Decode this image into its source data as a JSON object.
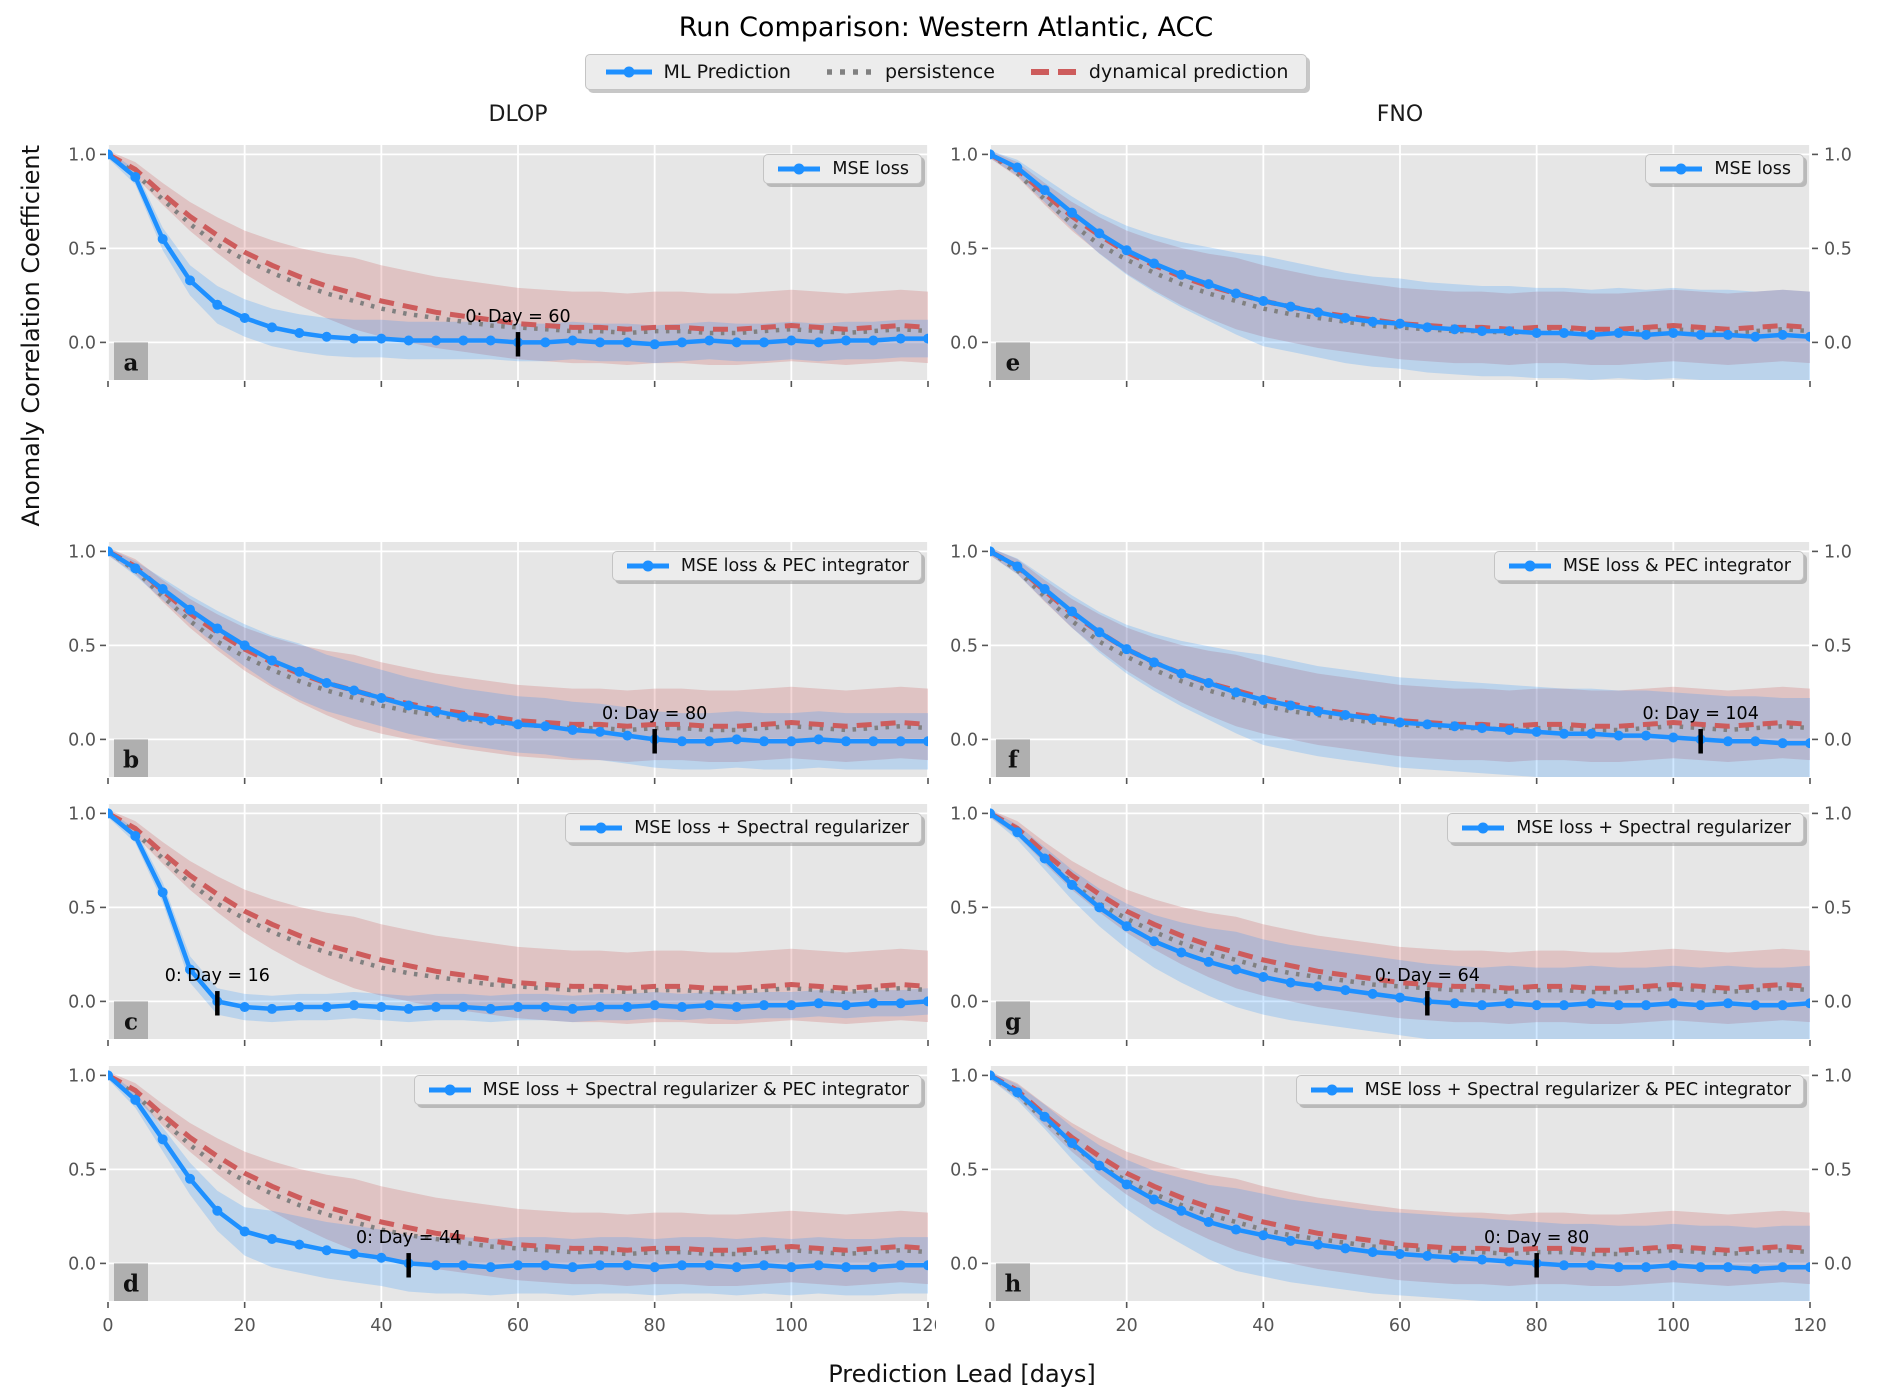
{
  "title": "Run Comparison: Western Atlantic, ACC",
  "xlabel": "Prediction Lead [days]",
  "ylabel": "Anomaly Correlation Coefficient",
  "column_titles": [
    "DLOP",
    "FNO"
  ],
  "figure_legend": [
    {
      "label": "ML Prediction",
      "series": "ml"
    },
    {
      "label": "persistence",
      "series": "persistence"
    },
    {
      "label": "dynamical prediction",
      "series": "dynamical"
    }
  ],
  "colors": {
    "ml": "#1E90FF",
    "persistence": "#808080",
    "dynamical": "#CD5C5C",
    "ml_band": "rgba(30,144,255,0.21)",
    "dynamical_band": "rgba(205,92,92,0.25)",
    "plot_bg": "#E6E6E6",
    "grid": "#FFFFFF",
    "tick_label": "#555555",
    "annotation": "#000000",
    "panel_label_bg": "#AFAFAF",
    "panel_label_text": "#111111"
  },
  "axes": {
    "xlim": [
      0,
      120
    ],
    "ylim": [
      -0.2,
      1.05
    ],
    "x_ticks": [
      0,
      20,
      40,
      60,
      80,
      100,
      120
    ],
    "x_tick_labels": [
      "0",
      "20",
      "40",
      "60",
      "80",
      "100",
      "120"
    ],
    "y_ticks": [
      1.0,
      0.5,
      0.0
    ],
    "y_tick_labels": [
      "1.0",
      "0.5",
      "0.0"
    ]
  },
  "chart_data": {
    "type": "line",
    "x": [
      0,
      4,
      8,
      12,
      16,
      20,
      24,
      28,
      32,
      36,
      40,
      44,
      48,
      52,
      56,
      60,
      64,
      68,
      72,
      76,
      80,
      84,
      88,
      92,
      96,
      100,
      104,
      108,
      112,
      116,
      120
    ],
    "reference_series": {
      "persistence": [
        1.0,
        0.9,
        0.76,
        0.63,
        0.52,
        0.44,
        0.37,
        0.31,
        0.26,
        0.22,
        0.18,
        0.15,
        0.13,
        0.11,
        0.09,
        0.08,
        0.07,
        0.06,
        0.06,
        0.05,
        0.06,
        0.06,
        0.05,
        0.05,
        0.06,
        0.07,
        0.06,
        0.05,
        0.06,
        0.07,
        0.06
      ],
      "dynamical": [
        1.0,
        0.92,
        0.79,
        0.67,
        0.57,
        0.48,
        0.41,
        0.35,
        0.3,
        0.26,
        0.22,
        0.19,
        0.16,
        0.14,
        0.12,
        0.1,
        0.09,
        0.08,
        0.08,
        0.07,
        0.08,
        0.08,
        0.07,
        0.07,
        0.08,
        0.09,
        0.08,
        0.07,
        0.08,
        0.09,
        0.08
      ],
      "dynamical_band_halfwidth": {
        "start": 0.02,
        "max": 0.19,
        "ramp_days": 36
      }
    },
    "panels": [
      {
        "id": "a",
        "column": "DLOP",
        "legend": "MSE loss",
        "ml": [
          1.0,
          0.88,
          0.55,
          0.33,
          0.2,
          0.13,
          0.08,
          0.05,
          0.03,
          0.02,
          0.02,
          0.01,
          0.01,
          0.01,
          0.01,
          0.0,
          0.0,
          0.01,
          0.0,
          0.0,
          -0.01,
          0.0,
          0.01,
          0.0,
          0.0,
          0.01,
          0.0,
          0.01,
          0.01,
          0.02,
          0.02
        ],
        "ml_band_halfwidth": {
          "start": 0.02,
          "max": 0.1,
          "ramp_days": 16
        },
        "annotation": {
          "day": 60,
          "label": "0: Day = 60"
        }
      },
      {
        "id": "b",
        "column": "DLOP",
        "legend": "MSE loss & PEC integrator",
        "ml": [
          1.0,
          0.91,
          0.8,
          0.69,
          0.59,
          0.5,
          0.42,
          0.36,
          0.3,
          0.26,
          0.22,
          0.18,
          0.15,
          0.12,
          0.1,
          0.08,
          0.07,
          0.05,
          0.04,
          0.02,
          0.0,
          -0.01,
          -0.01,
          0.0,
          -0.01,
          -0.01,
          0.0,
          -0.01,
          -0.01,
          -0.01,
          -0.01
        ],
        "ml_band_halfwidth": {
          "start": 0.02,
          "max": 0.15,
          "ramp_days": 28
        },
        "annotation": {
          "day": 80,
          "label": "0: Day = 80"
        }
      },
      {
        "id": "c",
        "column": "DLOP",
        "legend": "MSE loss + Spectral regularizer",
        "ml": [
          1.0,
          0.88,
          0.58,
          0.17,
          0.0,
          -0.03,
          -0.04,
          -0.03,
          -0.03,
          -0.02,
          -0.03,
          -0.04,
          -0.03,
          -0.03,
          -0.04,
          -0.03,
          -0.03,
          -0.04,
          -0.03,
          -0.03,
          -0.02,
          -0.03,
          -0.02,
          -0.03,
          -0.02,
          -0.02,
          -0.01,
          -0.02,
          -0.01,
          -0.01,
          0.0
        ],
        "ml_band_halfwidth": {
          "start": 0.02,
          "max": 0.07,
          "ramp_days": 12
        },
        "annotation": {
          "day": 16,
          "label": "0: Day = 16"
        }
      },
      {
        "id": "d",
        "column": "DLOP",
        "legend": "MSE loss + Spectral regularizer & PEC integrator",
        "ml": [
          1.0,
          0.87,
          0.66,
          0.45,
          0.28,
          0.17,
          0.13,
          0.1,
          0.07,
          0.05,
          0.03,
          0.0,
          -0.01,
          -0.01,
          -0.02,
          -0.01,
          -0.01,
          -0.02,
          -0.01,
          -0.01,
          -0.02,
          -0.01,
          -0.01,
          -0.02,
          -0.01,
          -0.02,
          -0.01,
          -0.02,
          -0.02,
          -0.01,
          -0.01
        ],
        "ml_band_halfwidth": {
          "start": 0.02,
          "max": 0.15,
          "ramp_days": 24
        },
        "annotation": {
          "day": 44,
          "label": "0: Day = 44"
        }
      },
      {
        "id": "e",
        "column": "FNO",
        "legend": "MSE loss",
        "ml": [
          1.0,
          0.93,
          0.81,
          0.69,
          0.58,
          0.49,
          0.42,
          0.36,
          0.31,
          0.26,
          0.22,
          0.19,
          0.16,
          0.13,
          0.11,
          0.1,
          0.08,
          0.07,
          0.06,
          0.06,
          0.05,
          0.05,
          0.04,
          0.05,
          0.04,
          0.05,
          0.04,
          0.04,
          0.03,
          0.04,
          0.03
        ],
        "ml_band_halfwidth": {
          "start": 0.02,
          "max": 0.24,
          "ramp_days": 40
        },
        "annotation": null
      },
      {
        "id": "f",
        "column": "FNO",
        "legend": "MSE loss & PEC integrator",
        "ml": [
          1.0,
          0.92,
          0.8,
          0.68,
          0.57,
          0.48,
          0.41,
          0.35,
          0.3,
          0.25,
          0.21,
          0.18,
          0.15,
          0.13,
          0.11,
          0.09,
          0.08,
          0.07,
          0.06,
          0.05,
          0.04,
          0.03,
          0.03,
          0.02,
          0.02,
          0.01,
          0.0,
          -0.01,
          -0.01,
          -0.02,
          -0.02
        ],
        "ml_band_halfwidth": {
          "start": 0.02,
          "max": 0.24,
          "ramp_days": 40
        },
        "annotation": {
          "day": 104,
          "label": "0: Day = 104"
        }
      },
      {
        "id": "g",
        "column": "FNO",
        "legend": "MSE loss + Spectral regularizer",
        "ml": [
          1.0,
          0.9,
          0.76,
          0.62,
          0.5,
          0.4,
          0.32,
          0.26,
          0.21,
          0.17,
          0.13,
          0.1,
          0.08,
          0.06,
          0.04,
          0.02,
          0.0,
          -0.01,
          -0.02,
          -0.01,
          -0.02,
          -0.02,
          -0.01,
          -0.02,
          -0.02,
          -0.01,
          -0.02,
          -0.01,
          -0.02,
          -0.02,
          -0.01
        ],
        "ml_band_halfwidth": {
          "start": 0.02,
          "max": 0.2,
          "ramp_days": 36
        },
        "annotation": {
          "day": 64,
          "label": "0: Day = 64"
        }
      },
      {
        "id": "h",
        "column": "FNO",
        "legend": "MSE loss + Spectral regularizer & PEC integrator",
        "ml": [
          1.0,
          0.91,
          0.78,
          0.64,
          0.52,
          0.42,
          0.34,
          0.28,
          0.22,
          0.18,
          0.15,
          0.12,
          0.1,
          0.08,
          0.06,
          0.05,
          0.04,
          0.03,
          0.02,
          0.01,
          0.0,
          -0.01,
          -0.01,
          -0.02,
          -0.02,
          -0.01,
          -0.02,
          -0.02,
          -0.03,
          -0.02,
          -0.02
        ],
        "ml_band_halfwidth": {
          "start": 0.02,
          "max": 0.22,
          "ramp_days": 36
        },
        "annotation": {
          "day": 80,
          "label": "0: Day = 80"
        }
      }
    ]
  }
}
